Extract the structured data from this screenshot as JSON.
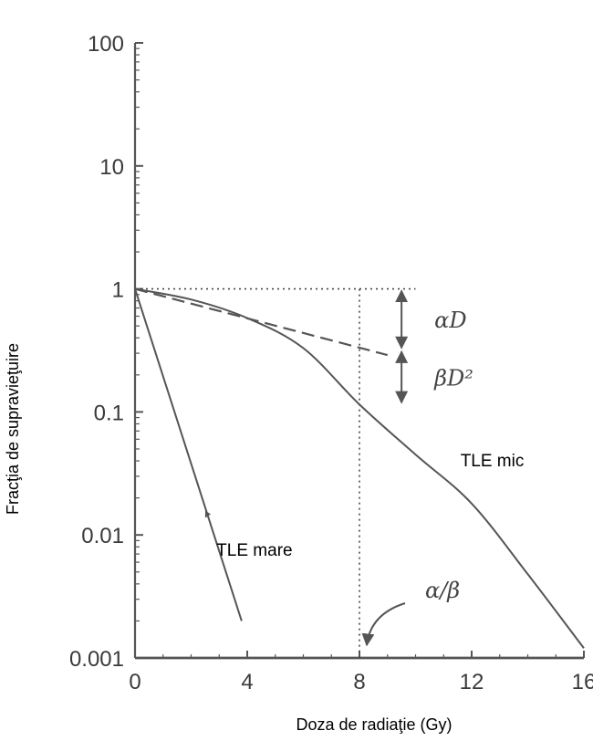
{
  "chart_data": {
    "type": "line",
    "title": "",
    "xlabel": "Doza de radiaţie (Gy)",
    "ylabel": "Fracţia de supravieţuire",
    "xlim": [
      0,
      16
    ],
    "ylim": [
      0.001,
      100
    ],
    "y_scale": "log",
    "x_ticks": [
      0,
      4,
      8,
      12,
      16
    ],
    "x_tick_labels": [
      "0",
      "4",
      "8",
      "12",
      "16"
    ],
    "y_ticks": [
      0.001,
      0.01,
      0.1,
      1,
      10,
      100
    ],
    "y_tick_labels": [
      "0.001",
      "0.01",
      "0.1",
      "1",
      "10",
      "100"
    ],
    "grid": false,
    "legend": "none",
    "series": [
      {
        "name": "TLE mic",
        "style": "solid",
        "x": [
          0,
          2,
          4,
          6,
          8,
          10,
          12,
          14,
          16
        ],
        "y": [
          1,
          0.82,
          0.58,
          0.33,
          0.115,
          0.045,
          0.018,
          0.0048,
          0.0012
        ]
      },
      {
        "name": "TLE mare",
        "style": "solid",
        "x": [
          0,
          3.8
        ],
        "y": [
          1,
          0.002
        ]
      },
      {
        "name": "αD",
        "style": "dashed",
        "x": [
          0,
          9
        ],
        "y": [
          1,
          0.29
        ]
      }
    ],
    "reference_lines": [
      {
        "type": "horizontal",
        "y": 1,
        "x_range": [
          0,
          10
        ],
        "style": "dotted"
      },
      {
        "type": "vertical",
        "x": 8,
        "y_range": [
          0.001,
          1
        ],
        "style": "dotted"
      }
    ],
    "annotations": [
      {
        "text": "αD",
        "arrow_from_y": 1,
        "arrow_to_y": 0.32,
        "x": 9.5
      },
      {
        "text": "βD²",
        "arrow_from_y": 0.32,
        "arrow_to_y": 0.115,
        "x": 9.5
      },
      {
        "text": "α/β",
        "points_to_x": 8,
        "points_to_y": 0.001
      },
      {
        "text": "TLE mic",
        "near_series": "TLE mic"
      },
      {
        "text": "TLE mare",
        "near_series": "TLE mare"
      }
    ],
    "colors": {
      "curve": "#555555",
      "axis": "#555555",
      "text": "#000000"
    }
  }
}
